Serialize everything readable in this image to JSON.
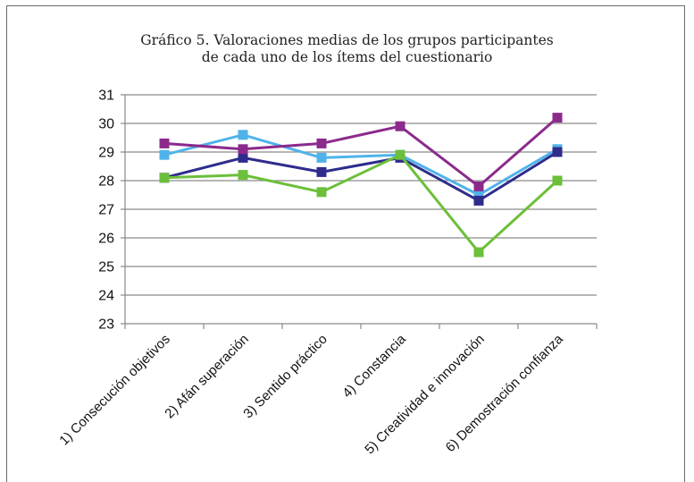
{
  "chart_data": {
    "type": "line",
    "title_line1": "Gráfico 5. Valoraciones medias de los grupos participantes",
    "title_line2": "de cada uno de los ítems del cuestionario",
    "xlabel": "",
    "ylabel": "",
    "categories": [
      "1) Consecución objetivos",
      "2) Afán superación",
      "3) Sentido práctico",
      "4) Constancia",
      "5) Creatividad e innovación",
      "6) Demostración confianza"
    ],
    "ylim": [
      23,
      31
    ],
    "yticks": [
      23,
      24,
      25,
      26,
      27,
      28,
      29,
      30,
      31
    ],
    "grid": true,
    "legend": "none",
    "series": [
      {
        "color": "#4fb3ea",
        "values": [
          28.9,
          29.6,
          28.8,
          28.9,
          27.5,
          29.1
        ]
      },
      {
        "color": "#2e2c8c",
        "values": [
          28.1,
          28.8,
          28.3,
          28.8,
          27.3,
          29.0
        ]
      },
      {
        "color": "#8c2a8c",
        "values": [
          29.3,
          29.1,
          29.3,
          29.9,
          27.8,
          30.2
        ]
      },
      {
        "color": "#6cbf3a",
        "values": [
          28.1,
          28.2,
          27.6,
          28.9,
          25.5,
          28.0
        ]
      }
    ]
  }
}
